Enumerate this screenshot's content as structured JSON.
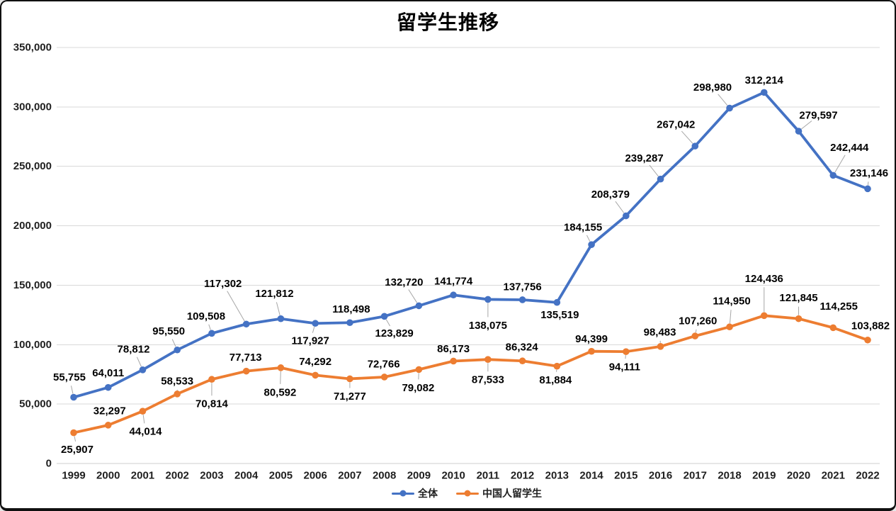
{
  "chart_data": {
    "type": "line",
    "title": "留学生推移",
    "x_labels": [
      "1999",
      "2000",
      "2001",
      "2002",
      "2003",
      "2004",
      "2005",
      "2006",
      "2007",
      "2008",
      "2009",
      "2010",
      "2011",
      "2012",
      "2013",
      "2014",
      "2015",
      "2016",
      "2017",
      "2018",
      "2019",
      "2020",
      "2021",
      "2022"
    ],
    "series": [
      {
        "name": "全体",
        "color": "#4472C4",
        "values": [
          55755,
          64011,
          78812,
          95550,
          109508,
          117302,
          121812,
          117927,
          118498,
          123829,
          132720,
          141774,
          138075,
          137756,
          135519,
          184155,
          208379,
          239287,
          267042,
          298980,
          312214,
          279597,
          242444,
          231146
        ],
        "label_offsets": [
          [
            -6,
            -28,
            1
          ],
          [
            0,
            -20,
            0
          ],
          [
            -13,
            -29,
            1
          ],
          [
            -12,
            -26,
            1
          ],
          [
            -8,
            -24,
            1
          ],
          [
            -33,
            -57,
            1
          ],
          [
            -9,
            -35,
            1
          ],
          [
            -7,
            25,
            1
          ],
          [
            2,
            -19,
            0
          ],
          [
            14,
            24,
            1
          ],
          [
            -21,
            -33,
            1
          ],
          [
            0,
            -19,
            0
          ],
          [
            0,
            37,
            1
          ],
          [
            0,
            -18,
            0
          ],
          [
            4,
            18,
            0
          ],
          [
            -12,
            -24,
            1
          ],
          [
            -22,
            -30,
            1
          ],
          [
            -23,
            -29,
            1
          ],
          [
            -27,
            -30,
            1
          ],
          [
            -24,
            -29,
            1
          ],
          [
            0,
            -17,
            0
          ],
          [
            28,
            -22,
            1
          ],
          [
            23,
            -39,
            1
          ],
          [
            2,
            -22,
            1
          ]
        ]
      },
      {
        "name": "中国人留学生",
        "color": "#ED7D31",
        "values": [
          25907,
          32297,
          44014,
          58533,
          70814,
          77713,
          80592,
          74292,
          71277,
          72766,
          79082,
          86173,
          87533,
          86324,
          81884,
          94399,
          94111,
          98483,
          107260,
          114950,
          124436,
          121845,
          114255,
          103882
        ],
        "label_offsets": [
          [
            5,
            24,
            1
          ],
          [
            2,
            -20,
            0
          ],
          [
            4,
            29,
            1
          ],
          [
            0,
            -18,
            1
          ],
          [
            0,
            35,
            1
          ],
          [
            -1,
            -19,
            0
          ],
          [
            -1,
            35,
            1
          ],
          [
            0,
            -19,
            0
          ],
          [
            0,
            25,
            1
          ],
          [
            -1,
            -18,
            0
          ],
          [
            -1,
            26,
            1
          ],
          [
            0,
            -17,
            0
          ],
          [
            0,
            29,
            1
          ],
          [
            -1,
            -19,
            0
          ],
          [
            -2,
            20,
            1
          ],
          [
            0,
            -17,
            0
          ],
          [
            -2,
            22,
            1
          ],
          [
            -1,
            -20,
            1
          ],
          [
            4,
            -21,
            1
          ],
          [
            3,
            -36,
            1
          ],
          [
            0,
            -52,
            1
          ],
          [
            0,
            -29,
            1
          ],
          [
            8,
            -30,
            0
          ],
          [
            4,
            -20,
            0
          ]
        ]
      }
    ],
    "ylim": [
      0,
      350000
    ],
    "y_ticks": [
      0,
      50000,
      100000,
      150000,
      200000,
      250000,
      300000,
      350000
    ],
    "grid": true,
    "legend_position": "bottom",
    "data_labels": true
  },
  "style": {
    "background": "#ffffff",
    "border_color": "#101010",
    "grid_color": "#d9d9d9",
    "axis_line_color": "#cfcfcf",
    "tick_label_color": "#1f1f1f",
    "data_label_color": "#000000",
    "leader_line_color": "#a6a6a6"
  }
}
